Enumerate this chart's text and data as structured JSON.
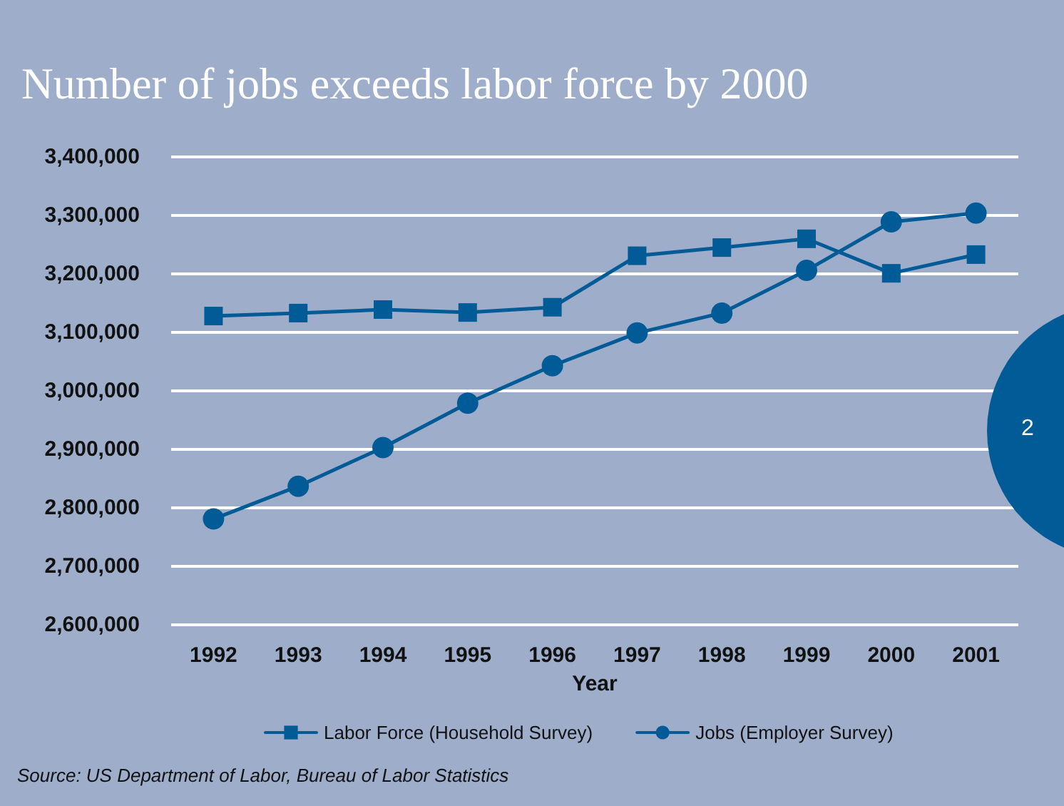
{
  "chart_data": {
    "type": "line",
    "title": "Number of jobs exceeds labor force by 2000",
    "xlabel": "Year",
    "categories": [
      "1992",
      "1993",
      "1994",
      "1995",
      "1996",
      "1997",
      "1998",
      "1999",
      "2000",
      "2001"
    ],
    "series": [
      {
        "name": "Labor Force (Household Survey)",
        "color": "#005b96",
        "marker": "square",
        "values": [
          3128000,
          3133000,
          3139000,
          3134000,
          3143000,
          3231000,
          3245000,
          3260000,
          3201000,
          3233000
        ]
      },
      {
        "name": "Jobs (Employer Survey)",
        "color": "#005b96",
        "marker": "circle",
        "values": [
          2781000,
          2837000,
          2903000,
          2979000,
          3043000,
          3099000,
          3133000,
          3206000,
          3289000,
          3304000
        ]
      }
    ],
    "ylim": [
      2600000,
      3400000
    ],
    "yticks": [
      {
        "value": 2600000,
        "label": "2,600,000"
      },
      {
        "value": 2700000,
        "label": "2,700,000"
      },
      {
        "value": 2800000,
        "label": "2,800,000"
      },
      {
        "value": 2900000,
        "label": "2,900,000"
      },
      {
        "value": 3000000,
        "label": "3,000,000"
      },
      {
        "value": 3100000,
        "label": "3,100,000"
      },
      {
        "value": 3200000,
        "label": "3,200,000"
      },
      {
        "value": 3300000,
        "label": "3,300,000"
      },
      {
        "value": 3400000,
        "label": "3,400,000"
      }
    ],
    "grid": "y",
    "legend": "bottom",
    "line_style": "solid",
    "annotations": [
      "Source: US Department of Labor, Bureau of Labor Statistics",
      "2"
    ]
  }
}
